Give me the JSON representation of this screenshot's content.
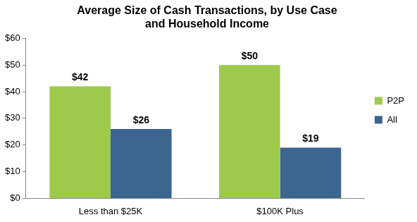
{
  "chart_data": {
    "type": "bar",
    "title": "Average Size of Cash Transactions, by Use Case and Household Income",
    "categories": [
      "Less than $25K",
      "$100K Plus"
    ],
    "series": [
      {
        "name": "P2P",
        "color": "#9dca4b",
        "values": [
          42,
          50
        ],
        "value_labels": [
          "$42",
          "$50"
        ]
      },
      {
        "name": "All",
        "color": "#3c6590",
        "values": [
          26,
          19
        ],
        "value_labels": [
          "$26",
          "$19"
        ]
      }
    ],
    "ylim": [
      0,
      60
    ],
    "yticks": [
      {
        "value": 0,
        "label": "$0"
      },
      {
        "value": 10,
        "label": "$10"
      },
      {
        "value": 20,
        "label": "$20"
      },
      {
        "value": 30,
        "label": "$30"
      },
      {
        "value": 40,
        "label": "$40"
      },
      {
        "value": 50,
        "label": "$50"
      },
      {
        "value": 60,
        "label": "$60"
      }
    ],
    "grid": false,
    "legend": "right",
    "data_labels": true
  }
}
